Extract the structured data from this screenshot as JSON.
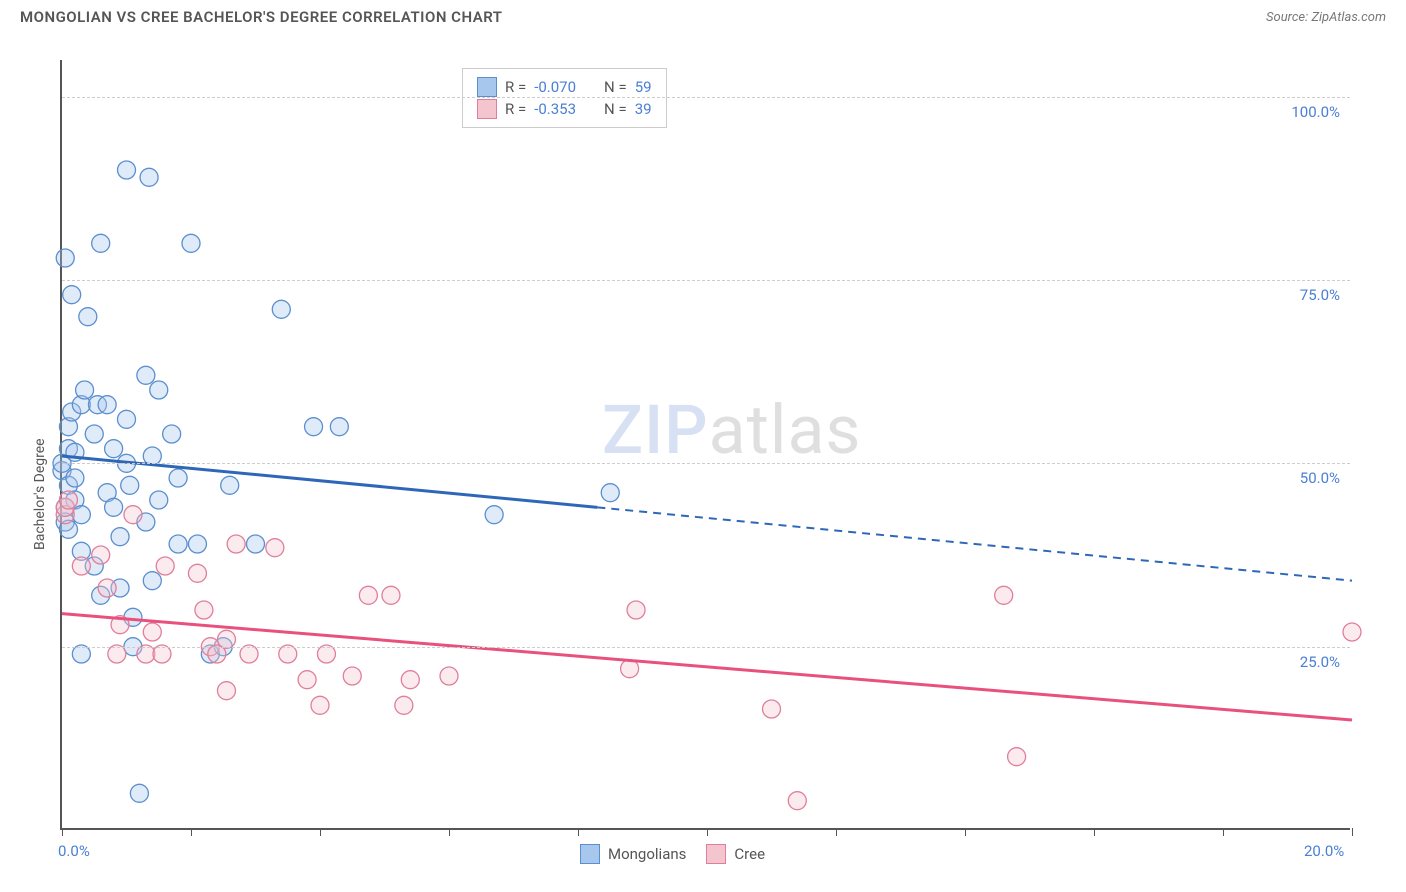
{
  "header": {
    "title": "MONGOLIAN VS CREE BACHELOR'S DEGREE CORRELATION CHART",
    "source_label": "Source:",
    "source_value": "ZipAtlas.com"
  },
  "watermark": {
    "part1": "ZIP",
    "part2": "atlas"
  },
  "chart": {
    "type": "scatter",
    "background_color": "#ffffff",
    "grid_color": "#cccccc",
    "axis_color": "#555555",
    "xlim": [
      0,
      20
    ],
    "ylim": [
      0,
      105
    ],
    "yticks": [
      25,
      50,
      75,
      100
    ],
    "ytick_labels": [
      "25.0%",
      "50.0%",
      "75.0%",
      "100.0%"
    ],
    "xticks": [
      0,
      2,
      4,
      6,
      8,
      10,
      12,
      14,
      16,
      18,
      20
    ],
    "xtick_labels": {
      "0": "0.0%",
      "20": "20.0%"
    },
    "ylabel": "Bachelor's Degree",
    "marker_radius": 9,
    "marker_stroke_width": 1.3,
    "marker_fill_opacity": 0.35,
    "trend_line_width": 3,
    "series": [
      {
        "name": "Mongolians",
        "color_fill": "#a7c7ed",
        "color_stroke": "#5b8fce",
        "trend_color": "#2f67b8",
        "R": "-0.070",
        "N": "59",
        "trend": {
          "x0": 0,
          "y0": 51,
          "x_solid_end": 8.3,
          "y_solid_end": 44,
          "x1": 20,
          "y1": 34
        },
        "points": [
          [
            0.0,
            49
          ],
          [
            0.0,
            50
          ],
          [
            0.1,
            47
          ],
          [
            0.1,
            52
          ],
          [
            0.1,
            55
          ],
          [
            0.15,
            57
          ],
          [
            0.2,
            45
          ],
          [
            0.2,
            51.5
          ],
          [
            0.3,
            58
          ],
          [
            0.3,
            43
          ],
          [
            0.05,
            78
          ],
          [
            0.15,
            73
          ],
          [
            0.4,
            70
          ],
          [
            1.0,
            90
          ],
          [
            1.35,
            89
          ],
          [
            0.6,
            80
          ],
          [
            1.3,
            62
          ],
          [
            1.5,
            60
          ],
          [
            2.0,
            80
          ],
          [
            3.4,
            71
          ],
          [
            0.5,
            54
          ],
          [
            0.7,
            46
          ],
          [
            0.8,
            52
          ],
          [
            1.0,
            56
          ],
          [
            1.05,
            47
          ],
          [
            1.4,
            51
          ],
          [
            1.5,
            45
          ],
          [
            1.8,
            48
          ],
          [
            2.1,
            39
          ],
          [
            2.6,
            47
          ],
          [
            3.0,
            39
          ],
          [
            3.9,
            55
          ],
          [
            4.3,
            55
          ],
          [
            6.7,
            43
          ],
          [
            8.5,
            46
          ],
          [
            0.3,
            38
          ],
          [
            0.5,
            36
          ],
          [
            0.6,
            32
          ],
          [
            0.9,
            40
          ],
          [
            0.9,
            33
          ],
          [
            1.1,
            29
          ],
          [
            1.4,
            34
          ],
          [
            1.1,
            25
          ],
          [
            1.2,
            5
          ],
          [
            0.3,
            24
          ],
          [
            1.8,
            39
          ],
          [
            2.3,
            24
          ],
          [
            2.5,
            25
          ],
          [
            0.05,
            44
          ],
          [
            0.05,
            42
          ],
          [
            0.1,
            41
          ],
          [
            0.35,
            60
          ],
          [
            0.55,
            58
          ],
          [
            0.7,
            58
          ],
          [
            0.8,
            44
          ],
          [
            1.3,
            42
          ],
          [
            1.7,
            54
          ],
          [
            1.0,
            50
          ],
          [
            0.2,
            48
          ]
        ]
      },
      {
        "name": "Cree",
        "color_fill": "#f4c4cf",
        "color_stroke": "#e07f9b",
        "trend_color": "#e8517d",
        "R": "-0.353",
        "N": "39",
        "trend": {
          "x0": 0,
          "y0": 29.5,
          "x_solid_end": 20,
          "y_solid_end": 15,
          "x1": 20,
          "y1": 15
        },
        "points": [
          [
            0.05,
            43
          ],
          [
            0.05,
            44
          ],
          [
            0.1,
            45
          ],
          [
            0.3,
            36
          ],
          [
            0.6,
            37.5
          ],
          [
            0.7,
            33
          ],
          [
            0.9,
            28
          ],
          [
            1.1,
            43
          ],
          [
            1.3,
            24
          ],
          [
            1.4,
            27
          ],
          [
            1.55,
            24
          ],
          [
            0.85,
            24
          ],
          [
            1.6,
            36
          ],
          [
            2.1,
            35
          ],
          [
            2.2,
            30
          ],
          [
            2.3,
            25
          ],
          [
            2.4,
            24
          ],
          [
            2.55,
            19
          ],
          [
            2.55,
            26
          ],
          [
            2.7,
            39
          ],
          [
            2.9,
            24
          ],
          [
            3.3,
            38.5
          ],
          [
            3.5,
            24
          ],
          [
            3.8,
            20.5
          ],
          [
            4.0,
            17
          ],
          [
            4.1,
            24
          ],
          [
            4.5,
            21
          ],
          [
            4.75,
            32
          ],
          [
            5.1,
            32
          ],
          [
            5.3,
            17
          ],
          [
            5.4,
            20.5
          ],
          [
            6.0,
            21
          ],
          [
            8.8,
            22
          ],
          [
            8.9,
            30
          ],
          [
            11.0,
            16.5
          ],
          [
            11.4,
            4
          ],
          [
            14.6,
            32
          ],
          [
            14.8,
            10
          ],
          [
            20.0,
            27
          ]
        ]
      }
    ]
  },
  "legend": {
    "items": [
      {
        "label": "Mongolians",
        "fill": "#a7c7ed",
        "stroke": "#5b8fce"
      },
      {
        "label": "Cree",
        "fill": "#f4c4cf",
        "stroke": "#e07f9b"
      }
    ]
  }
}
